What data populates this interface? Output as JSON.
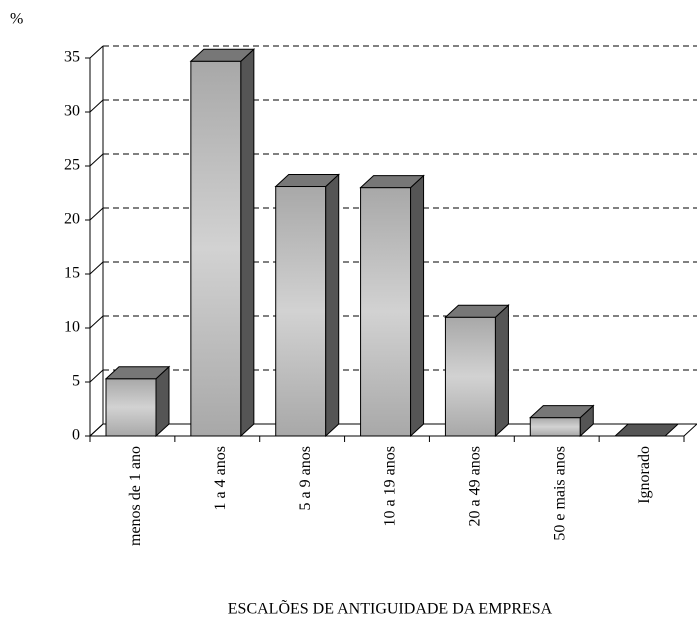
{
  "chart_data": {
    "type": "bar3d",
    "ylabel": "%",
    "xlabel": "ESCALÕES DE ANTIGUIDADE DA EMPRESA",
    "categories": [
      "menos de 1 ano",
      "1 a 4 anos",
      "5 a 9 anos",
      "10 a 19 anos",
      "20 a 49 anos",
      "50 e mais anos",
      "Ignorado"
    ],
    "values": [
      5.3,
      34.7,
      23.1,
      23.0,
      11.0,
      1.7,
      0
    ],
    "color": "#bdbdbd",
    "ylim": [
      0,
      35
    ],
    "yticks": [
      0,
      5,
      10,
      15,
      20,
      25,
      30,
      35
    ],
    "grid": true
  }
}
